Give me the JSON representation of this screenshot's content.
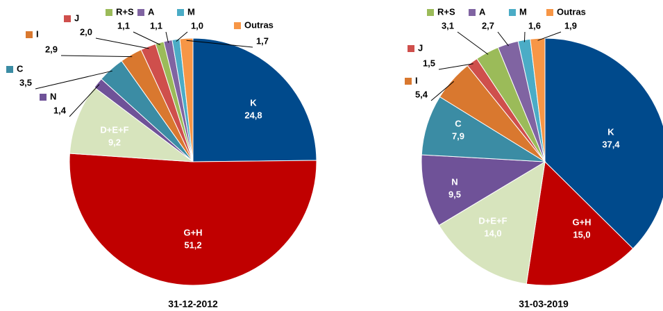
{
  "chart_data": [
    {
      "type": "pie",
      "xlabel": "31-12-2012",
      "categories": [
        "K",
        "G+H",
        "D+E+F",
        "N",
        "C",
        "I",
        "J",
        "R+S",
        "A",
        "M",
        "Outras"
      ],
      "values": [
        24.8,
        51.2,
        9.2,
        1.4,
        3.5,
        2.9,
        2.0,
        1.1,
        1.1,
        1.0,
        1.7
      ],
      "value_labels": [
        "24,8",
        "51,2",
        "9,2",
        "1,4",
        "3,5",
        "2,9",
        "2,0",
        "1,1",
        "1,1",
        "1,0",
        "1,7"
      ],
      "colors": [
        "#004a8c",
        "#c00000",
        "#d7e4bd",
        "#6f5298",
        "#3b8ca4",
        "#d9782f",
        "#cf4f4c",
        "#9bbb59",
        "#8064a2",
        "#4bacc6",
        "#f79646"
      ]
    },
    {
      "type": "pie",
      "xlabel": "31-03-2019",
      "categories": [
        "K",
        "G+H",
        "D+E+F",
        "N",
        "C",
        "I",
        "J",
        "R+S",
        "A",
        "M",
        "Outras"
      ],
      "values": [
        37.4,
        15.0,
        14.0,
        9.5,
        7.9,
        5.4,
        1.5,
        3.1,
        2.7,
        1.6,
        1.9
      ],
      "value_labels": [
        "37,4",
        "15,0",
        "14,0",
        "9,5",
        "7,9",
        "5,4",
        "1,5",
        "3,1",
        "2,7",
        "1,6",
        "1,9"
      ],
      "colors": [
        "#004a8c",
        "#c00000",
        "#d7e4bd",
        "#6f5298",
        "#3b8ca4",
        "#d9782f",
        "#cf4f4c",
        "#9bbb59",
        "#8064a2",
        "#4bacc6",
        "#f79646"
      ]
    }
  ]
}
